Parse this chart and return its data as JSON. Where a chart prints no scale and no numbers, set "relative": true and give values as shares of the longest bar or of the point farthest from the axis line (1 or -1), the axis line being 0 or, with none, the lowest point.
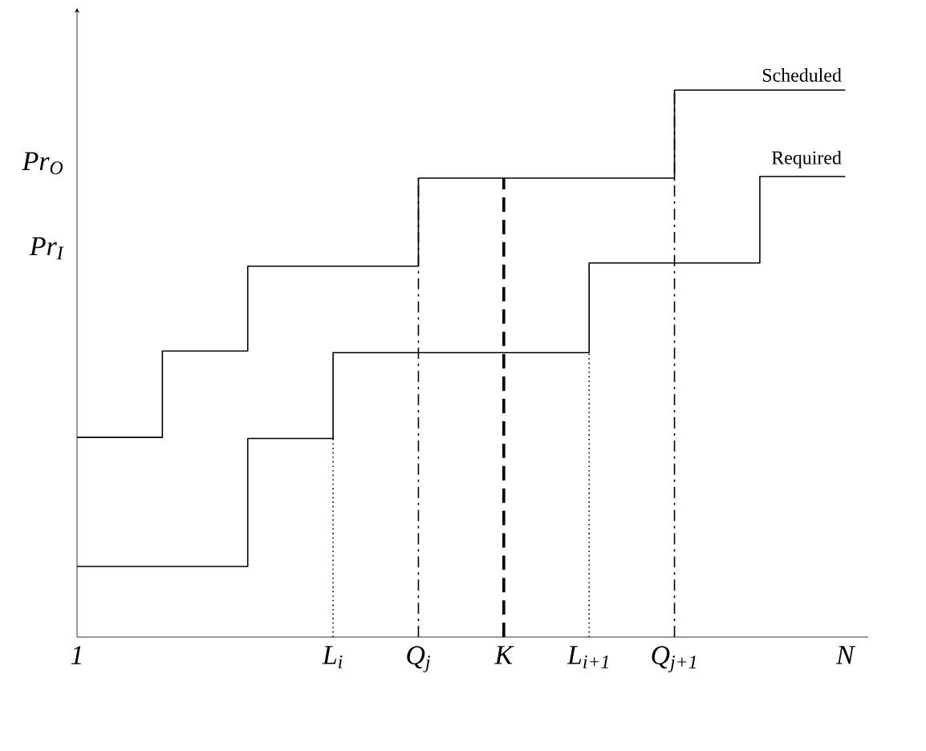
{
  "chart_data": {
    "type": "step",
    "relative": true,
    "categories": [
      "1",
      null,
      null,
      "L$_{i}$",
      "Q$_{j}$",
      "K",
      "L$_{i+1}$",
      "Q$_{j+1}$",
      null,
      "N"
    ],
    "annotations": [
      "Pr$_{O}$",
      "Pr$_{I}$"
    ],
    "series": [
      {
        "name": "Scheduled",
        "color": "#000000",
        "values": [
          0.365,
          0.523,
          0.678,
          0.678,
          0.839,
          0.839,
          0.839,
          1,
          1,
          1
        ]
      },
      {
        "name": "Required",
        "color": "#000000",
        "values": [
          0.129,
          0.129,
          0.363,
          0.52,
          0.52,
          0.52,
          0.684,
          0.684,
          0.842,
          0.842
        ]
      }
    ],
    "ref_lines": [
      {
        "axis": "x",
        "value": "L$_{i}$",
        "line_style": "dotted",
        "color": "#000000"
      },
      {
        "axis": "x",
        "value": "Q$_{j}$",
        "line_style": "dashdot",
        "color": "#000000"
      },
      {
        "axis": "x",
        "value": "K",
        "line_style": "dashed",
        "color": "#000000"
      },
      {
        "axis": "x",
        "value": "L$_{i+1}$",
        "line_style": "dotted",
        "color": "#000000"
      },
      {
        "axis": "x",
        "value": "Q$_{j+1}$",
        "line_style": "dashdot",
        "color": "#000000"
      }
    ]
  }
}
